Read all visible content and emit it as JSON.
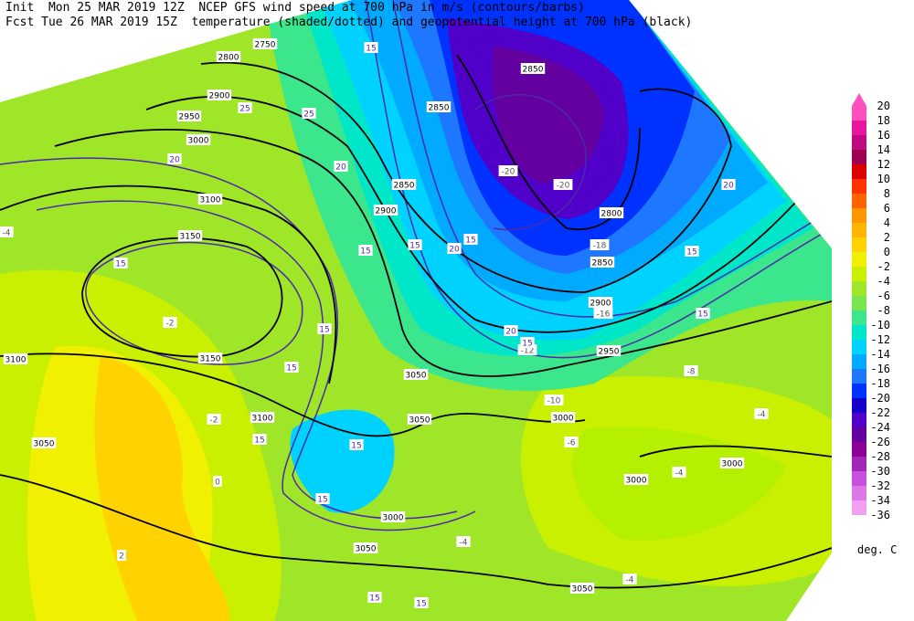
{
  "header": {
    "line1": "Init  Mon 25 MAR 2019 12Z  NCEP GFS wind speed at 700 hPa in m/s (contours/barbs)",
    "line2": "Fcst Tue 26 MAR 2019 15Z  temperature (shaded/dotted) and geopotential height at 700 hPa (black)"
  },
  "colorbar": {
    "levels": [
      20,
      18,
      16,
      14,
      12,
      10,
      8,
      6,
      4,
      2,
      0,
      -2,
      -4,
      -6,
      -8,
      -10,
      -12,
      -14,
      -16,
      -18,
      -20,
      -22,
      -24,
      -26,
      -28,
      -30,
      -32,
      -34,
      -36
    ],
    "colors": [
      "#ff50be",
      "#e6169e",
      "#c00a80",
      "#a00050",
      "#dc0000",
      "#ff3200",
      "#ff6400",
      "#ff9600",
      "#ffb400",
      "#ffd200",
      "#f0f000",
      "#c8f000",
      "#a0e628",
      "#78e650",
      "#3ce68c",
      "#00e6c8",
      "#00d2ff",
      "#00aaff",
      "#1e78ff",
      "#0032ff",
      "#1400c8",
      "#5000c8",
      "#6400a0",
      "#8c0096",
      "#a028b4",
      "#c850dc",
      "#dc78e6",
      "#f0a0f0"
    ],
    "unit": "deg. C"
  },
  "map_labels": [
    "2750",
    "2800",
    "2850",
    "2850",
    "2900",
    "2950",
    "3000",
    "3100",
    "3150",
    "3150",
    "3100",
    "3050",
    "3100",
    "3050",
    "3050",
    "3000",
    "3000",
    "3000",
    "3000",
    "3050",
    "3050",
    "2800",
    "2850",
    "2900",
    "2950",
    "2850",
    "2900",
    "-20",
    "-20",
    "-18",
    "-16",
    "-12",
    "-10",
    "-8",
    "-6",
    "-4",
    "-4",
    "-4",
    "-4",
    "-2",
    "0",
    "2",
    "-2",
    "-4",
    "15",
    "15",
    "20",
    "25",
    "25",
    "20",
    "15",
    "15",
    "20",
    "15",
    "15",
    "20",
    "15",
    "20",
    "15",
    "15",
    "15",
    "15",
    "15",
    "15",
    "15",
    "15"
  ]
}
